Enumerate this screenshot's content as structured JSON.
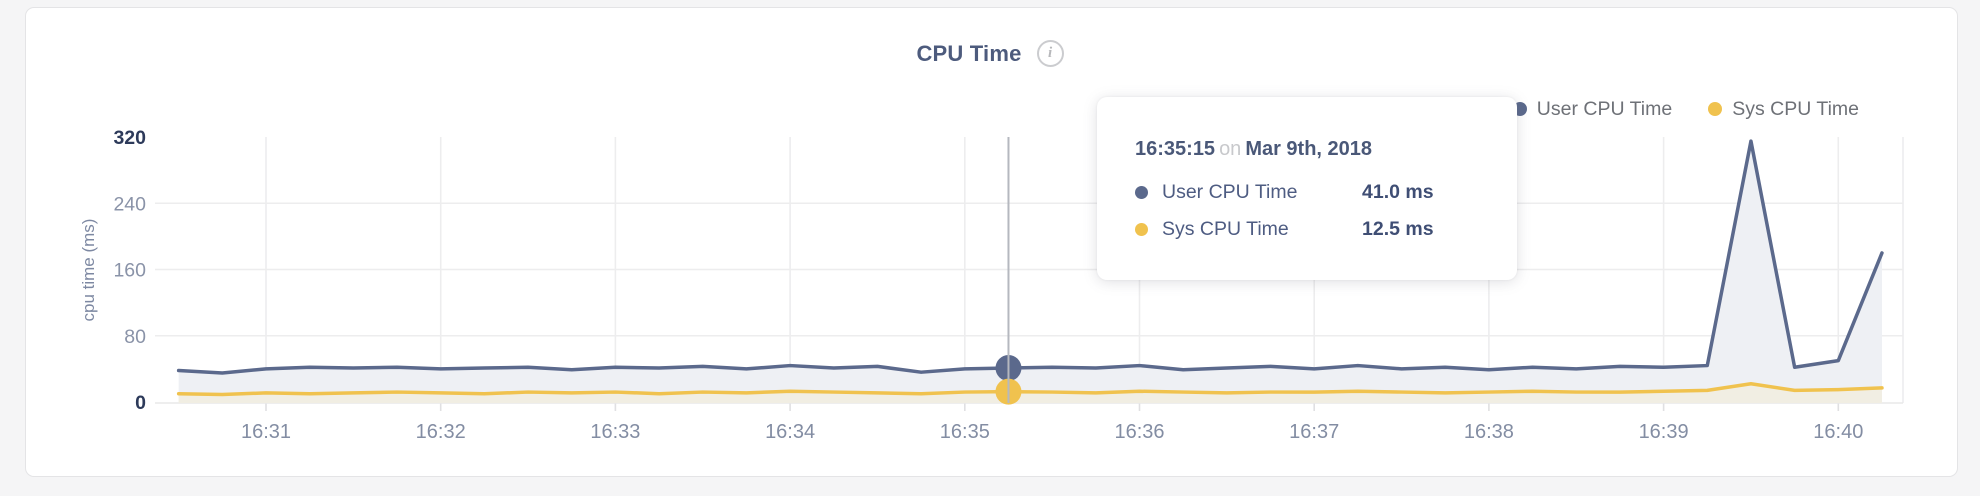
{
  "page": {
    "background": "#f5f5f6"
  },
  "header": {
    "info_icon": "i"
  },
  "legend": {
    "items": [
      {
        "label": "User CPU Time",
        "color": "#5b698c"
      },
      {
        "label": "Sys CPU Time",
        "color": "#f0c24e"
      }
    ]
  },
  "tooltip": {
    "time": "16:35:15",
    "connector": "on",
    "date": "Mar 9th, 2018",
    "rows": [
      {
        "label": "User CPU Time",
        "value": "41.0 ms",
        "color": "#5b698c"
      },
      {
        "label": "Sys CPU Time",
        "value": "12.5 ms",
        "color": "#f0c24e"
      }
    ]
  },
  "chart_data": {
    "type": "line",
    "title": "CPU Time",
    "ylabel": "cpu time (ms)",
    "ylim": [
      0,
      320
    ],
    "y_ticks": [
      320,
      240,
      160,
      80,
      0
    ],
    "x_ticks": [
      "16:31",
      "16:32",
      "16:33",
      "16:34",
      "16:35",
      "16:36",
      "16:37",
      "16:38",
      "16:39",
      "16:40"
    ],
    "start_time": "16:30:30",
    "interval_seconds": 15,
    "grid": true,
    "legend_position": "top-right",
    "hover_index": 19,
    "hover_time": "16:35:15",
    "series": [
      {
        "name": "User CPU Time",
        "color": "#5b698c",
        "fill": "#eef0f4",
        "values": [
          38,
          35,
          40,
          42,
          41,
          42,
          40,
          41,
          42,
          39,
          42,
          41,
          43,
          40,
          44,
          41,
          43,
          36,
          40,
          41,
          42,
          41,
          44,
          39,
          41,
          43,
          40,
          44,
          40,
          42,
          39,
          42,
          40,
          43,
          42,
          44,
          315,
          42,
          50,
          180
        ]
      },
      {
        "name": "Sys CPU Time",
        "color": "#f0c24e",
        "fill": "#f1eee3",
        "values": [
          10,
          9,
          11,
          10,
          11,
          12,
          11,
          10,
          12,
          11,
          12,
          10,
          12,
          11,
          13,
          12,
          11,
          10,
          12,
          12.5,
          12,
          11,
          13,
          12,
          11,
          12,
          12,
          13,
          12,
          11,
          12,
          13,
          12,
          12,
          13,
          14,
          22,
          14,
          15,
          17
        ]
      }
    ]
  }
}
